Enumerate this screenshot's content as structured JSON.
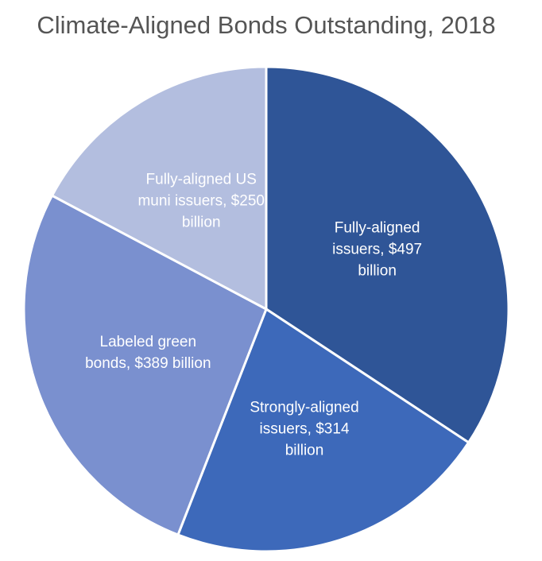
{
  "chart_data": {
    "type": "pie",
    "title": "Climate-Aligned Bonds Outstanding, 2018",
    "categories": [
      "Fully-aligned issuers, $497 billion",
      "Strongly-aligned issuers, $314 billion",
      "Labeled green bonds, $389 billion",
      "Fully-aligned US muni issuers, $250 billion"
    ],
    "values": [
      497,
      314,
      389,
      250
    ],
    "colors": [
      "#2f5597",
      "#3d69ba",
      "#7a90cf",
      "#b3bedf"
    ]
  }
}
